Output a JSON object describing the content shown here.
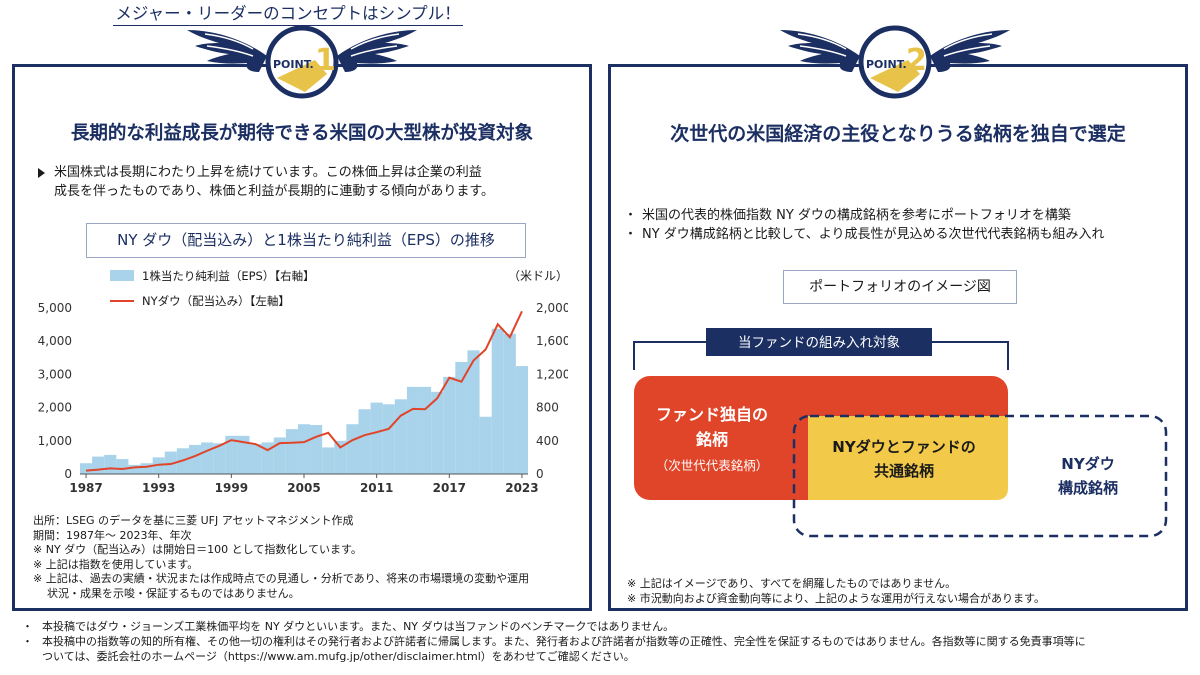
{
  "panel1": {
    "badge": {
      "point_label": "POINT.",
      "point_number": "1"
    },
    "heading": "長期的な利益成長が期待できる米国の大型株が投資対象",
    "intro_lines": [
      "米国株式は長期にわたり上昇を続けています。この株価上昇は企業の利益",
      "成長を伴ったものであり、株価と利益が長期的に連動する傾向があります。"
    ],
    "chart_title": "NY ダウ（配当込み）と1株当たり純利益（EPS）の推移",
    "notes": [
      "出所：LSEG のデータを基に三菱 UFJ アセットマネジメント作成",
      "期間：1987年～ 2023年、年次",
      "※  NY ダウ（配当込み）は開始日＝100 として指数化しています。",
      "※  上記は指数を使用しています。",
      "※  上記は、過去の実績・状況または作成時点での見通し・分析であり、将来の市場環境の変動や運用",
      "     状況・成果を示唆・保証するものではありません。"
    ]
  },
  "panel2": {
    "badge": {
      "point_label": "POINT.",
      "point_number": "2"
    },
    "heading": "次世代の米国経済の主役となりうる銘柄を独自で選定",
    "subtitle": "メジャー・リーダーのコンセプトはシンプル！",
    "points": [
      "米国の代表的株価指数 NY ダウの構成銘柄を参考にポートフォリオを構築",
      "NY ダウ構成銘柄と比較して、より成長性が見込める次世代代表銘柄も組み入れ"
    ],
    "portfolio_title": "ポートフォリオのイメージ図",
    "diagram": {
      "bracket_label": "当ファンドの組み入れ対象",
      "fund_only_line1": "ファンド独自の",
      "fund_only_line2": "銘柄",
      "fund_only_sub": "（次世代代表銘柄）",
      "common_line1": "NYダウとファンドの",
      "common_line2": "共通銘柄",
      "dow_line1": "NYダウ",
      "dow_line2": "構成銘柄",
      "colors": {
        "fund": "#e0452a",
        "common": "#f3c94a",
        "dow_border": "#1c2f63",
        "bracket": "#1c2f63"
      }
    },
    "notes": [
      "※  上記はイメージであり、すべてを網羅したものではありません。",
      "※  市況動向および資金動向等により、上記のような運用が行えない場合があります。"
    ]
  },
  "footer": [
    "本投稿ではダウ・ジョーンズ工業株価平均を NY ダウといいます。また、NY ダウは当ファンドのベンチマークではありません。",
    "本投稿中の指数等の知的所有権、その他一切の権利はその発行者および許諾者に帰属します。また、発行者および許諾者が指数等の正確性、完全性を保証するものではありません。各指数等に関する免責事項等に",
    "ついては、委託会社のホームページ（https://www.am.mufg.jp/other/disclaimer.html）をあわせてご確認ください。"
  ],
  "colors": {
    "navy": "#1c2f63",
    "gold": "#e8c34a",
    "bar": "#a8d3ea",
    "line": "#e0452a"
  },
  "chart_data": {
    "type": "bar+line",
    "x": [
      1987,
      1988,
      1989,
      1990,
      1991,
      1992,
      1993,
      1994,
      1995,
      1996,
      1997,
      1998,
      1999,
      2000,
      2001,
      2002,
      2003,
      2004,
      2005,
      2006,
      2007,
      2008,
      2009,
      2010,
      2011,
      2012,
      2013,
      2014,
      2015,
      2016,
      2017,
      2018,
      2019,
      2020,
      2021,
      2022,
      2023
    ],
    "x_tick_labels": [
      "1987",
      "1993",
      "1999",
      "2005",
      "2011",
      "2017",
      "2023"
    ],
    "x_ticks": [
      1987,
      1993,
      1999,
      2005,
      2011,
      2017,
      2023
    ],
    "series": [
      {
        "name": "1株当たり純利益（EPS）【右軸】",
        "kind": "bar",
        "axis": "right",
        "values": [
          130,
          210,
          230,
          180,
          110,
          130,
          200,
          270,
          310,
          350,
          380,
          370,
          460,
          460,
          360,
          380,
          440,
          540,
          600,
          590,
          320,
          400,
          600,
          780,
          860,
          840,
          900,
          1050,
          1050,
          990,
          1170,
          1350,
          1490,
          690,
          1750,
          1690,
          1300
        ]
      },
      {
        "name": "NYダウ（配当込み）【左軸】",
        "kind": "line",
        "axis": "left",
        "values": [
          100,
          130,
          170,
          150,
          200,
          220,
          280,
          300,
          410,
          540,
          700,
          850,
          1020,
          960,
          900,
          720,
          930,
          940,
          960,
          1120,
          1240,
          800,
          1020,
          1170,
          1260,
          1360,
          1760,
          1960,
          1950,
          2280,
          2900,
          2780,
          3420,
          3750,
          4510,
          4120,
          4900
        ]
      }
    ],
    "left_ylim": [
      0,
      5000
    ],
    "left_ticks": [
      0,
      1000,
      2000,
      3000,
      4000,
      5000
    ],
    "left_tick_labels": [
      "0",
      "1,000",
      "2,000",
      "3,000",
      "4,000",
      "5,000"
    ],
    "right_ylim": [
      0,
      2000
    ],
    "right_ticks": [
      0,
      400,
      800,
      1200,
      1600,
      2000
    ],
    "right_tick_labels": [
      "0",
      "400",
      "800",
      "1,200",
      "1,600",
      "2,000"
    ],
    "right_unit": "（米ドル）",
    "legend_position": "top-left"
  }
}
